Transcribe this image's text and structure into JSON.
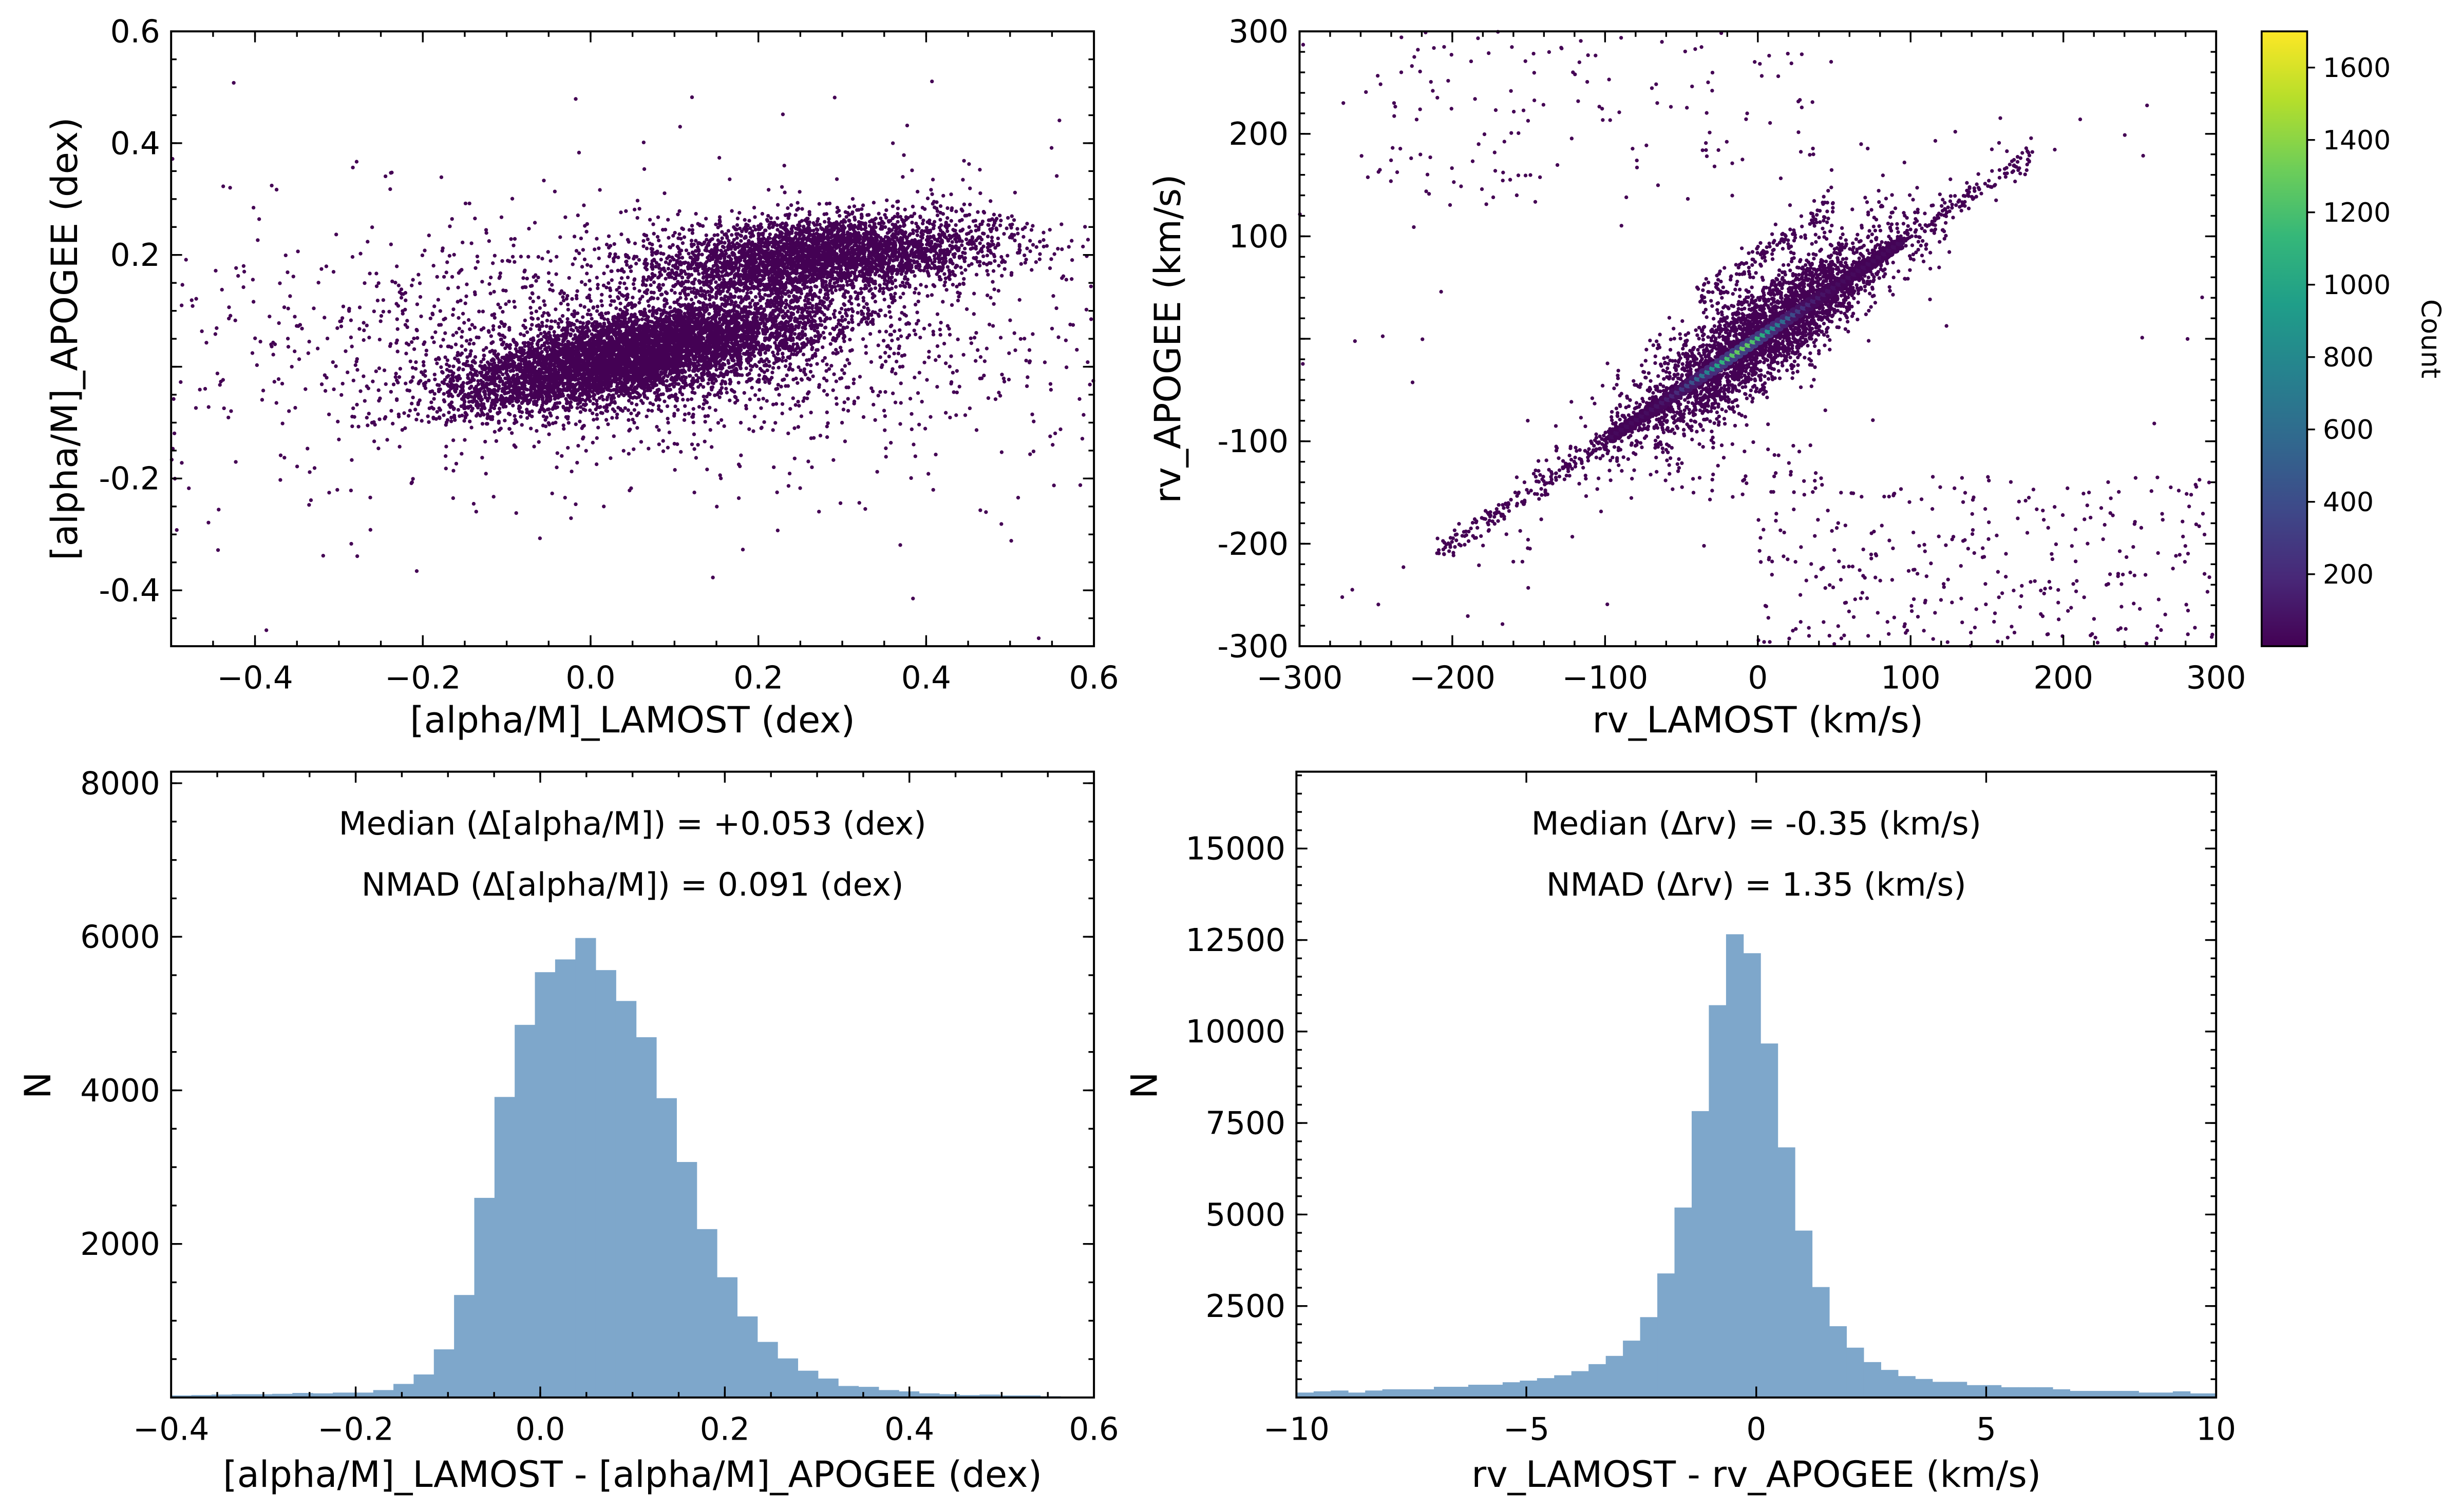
{
  "chart_data": [
    {
      "id": "alpha-scatter",
      "type": "heatmap",
      "xlabel": "[alpha/M]_LAMOST (dex)",
      "ylabel": "[alpha/M]_APOGEE (dex)",
      "xlim": [
        -0.5,
        0.6
      ],
      "ylim": [
        -0.5,
        0.6
      ],
      "xticks": [
        {
          "v": -0.4,
          "l": "−0.4"
        },
        {
          "v": -0.2,
          "l": "−0.2"
        },
        {
          "v": 0.0,
          "l": "0.0"
        },
        {
          "v": 0.2,
          "l": "0.2"
        },
        {
          "v": 0.4,
          "l": "0.4"
        },
        {
          "v": 0.6,
          "l": "0.6"
        }
      ],
      "yticks": [
        {
          "v": -0.4,
          "l": "-0.4"
        },
        {
          "v": -0.2,
          "l": "-0.2"
        },
        {
          "v": 0.0,
          "l": ""
        },
        {
          "v": 0.2,
          "l": "0.2"
        },
        {
          "v": 0.4,
          "l": "0.4"
        },
        {
          "v": 0.6,
          "l": "0.6"
        }
      ],
      "colormap": "viridis",
      "point_color": "#440154"
    },
    {
      "id": "rv-scatter",
      "type": "heatmap",
      "xlabel": "rv_LAMOST (km/s)",
      "ylabel": "rv_APOGEE (km/s)",
      "xlim": [
        -300,
        300
      ],
      "ylim": [
        -300,
        300
      ],
      "xticks": [
        {
          "v": -300,
          "l": "−300"
        },
        {
          "v": -200,
          "l": "−200"
        },
        {
          "v": -100,
          "l": "−100"
        },
        {
          "v": 0,
          "l": "0"
        },
        {
          "v": 100,
          "l": "100"
        },
        {
          "v": 200,
          "l": "200"
        },
        {
          "v": 300,
          "l": "300"
        }
      ],
      "yticks": [
        {
          "v": -300,
          "l": "-300"
        },
        {
          "v": -200,
          "l": "-200"
        },
        {
          "v": -100,
          "l": "-100"
        },
        {
          "v": 0,
          "l": ""
        },
        {
          "v": 100,
          "l": "100"
        },
        {
          "v": 200,
          "l": "200"
        },
        {
          "v": 300,
          "l": "300"
        }
      ],
      "colormap": "viridis",
      "colorbar": {
        "label": "Count",
        "range": [
          1,
          1700
        ],
        "ticks": [
          {
            "v": 200,
            "l": "200"
          },
          {
            "v": 400,
            "l": "400"
          },
          {
            "v": 600,
            "l": "600"
          },
          {
            "v": 800,
            "l": "800"
          },
          {
            "v": 1000,
            "l": "1000"
          },
          {
            "v": 1200,
            "l": "1200"
          },
          {
            "v": 1400,
            "l": "1400"
          },
          {
            "v": 1600,
            "l": "1600"
          }
        ],
        "colors": [
          "#440154",
          "#482878",
          "#3e4989",
          "#31688e",
          "#26828e",
          "#1f9e89",
          "#35b779",
          "#6ece58",
          "#b5de2b",
          "#fde725"
        ]
      }
    },
    {
      "id": "alpha-hist",
      "type": "bar",
      "xlabel": "[alpha/M]_LAMOST - [alpha/M]_APOGEE (dex)",
      "ylabel": "N",
      "xlim": [
        -0.4,
        0.6
      ],
      "ylim": [
        0,
        8150
      ],
      "bin_start": -0.4,
      "bin_width": 0.0219,
      "counts": [
        27,
        32,
        38,
        43,
        43,
        48,
        59,
        54,
        64,
        64,
        97,
        177,
        300,
        627,
        1335,
        2600,
        3914,
        4853,
        5539,
        5705,
        5984,
        5566,
        5164,
        4692,
        3898,
        3067,
        2193,
        1566,
        1056,
        724,
        509,
        349,
        247,
        150,
        139,
        97,
        80,
        54,
        43,
        32,
        38,
        27,
        27,
        16,
        11,
        0
      ],
      "bar_color": "#7ea7cb",
      "xticks": [
        {
          "v": -0.4,
          "l": "−0.4"
        },
        {
          "v": -0.2,
          "l": "−0.2"
        },
        {
          "v": 0.0,
          "l": "0.0"
        },
        {
          "v": 0.2,
          "l": "0.2"
        },
        {
          "v": 0.4,
          "l": "0.4"
        },
        {
          "v": 0.6,
          "l": "0.6"
        }
      ],
      "yticks": [
        {
          "v": 2000,
          "l": "2000"
        },
        {
          "v": 4000,
          "l": "4000"
        },
        {
          "v": 6000,
          "l": "6000"
        },
        {
          "v": 8000,
          "l": "8000"
        }
      ],
      "annotations": [
        "Median (Δ[alpha/M]) = +0.053 (dex)",
        "NMAD (Δ[alpha/M]) = 0.091 (dex)"
      ]
    },
    {
      "id": "rv-hist",
      "type": "bar",
      "xlabel": "rv_LAMOST - rv_APOGEE (km/s)",
      "ylabel": "N",
      "xlim": [
        -10,
        10
      ],
      "ylim": [
        0,
        17100
      ],
      "bin_start": -10,
      "bin_width": 0.3737,
      "counts": [
        135,
        169,
        191,
        135,
        191,
        225,
        225,
        225,
        293,
        293,
        349,
        349,
        417,
        462,
        529,
        608,
        720,
        912,
        1137,
        1554,
        2196,
        3390,
        5191,
        7826,
        10720,
        12658,
        12140,
        9673,
        6835,
        4561,
        3018,
        1948,
        1362,
        968,
        754,
        585,
        507,
        428,
        428,
        338,
        338,
        281,
        281,
        281,
        225,
        180,
        180,
        180,
        180,
        135,
        135,
        169,
        112,
        112
      ],
      "bar_color": "#7ea7cb",
      "xticks": [
        {
          "v": -10,
          "l": "−10"
        },
        {
          "v": -5,
          "l": "−5"
        },
        {
          "v": 0,
          "l": "0"
        },
        {
          "v": 5,
          "l": "5"
        },
        {
          "v": 10,
          "l": "10"
        }
      ],
      "yticks": [
        {
          "v": 2500,
          "l": "2500"
        },
        {
          "v": 5000,
          "l": "5000"
        },
        {
          "v": 7500,
          "l": "7500"
        },
        {
          "v": 10000,
          "l": "10000"
        },
        {
          "v": 12500,
          "l": "12500"
        },
        {
          "v": 15000,
          "l": "15000"
        }
      ],
      "annotations": [
        "Median (Δrv) = -0.35 (km/s)",
        "NMAD (Δrv) = 1.35 (km/s)"
      ]
    }
  ]
}
